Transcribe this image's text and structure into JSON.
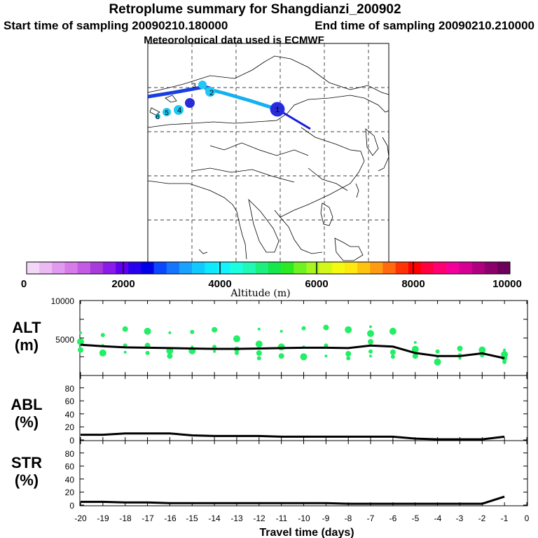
{
  "header": {
    "title": "Retroplume summary for Shangdianzi_200902",
    "start_label": "Start time of sampling 20090210.180000",
    "end_label": "End time of sampling 20090210.210000",
    "met_label": "Meteorological data used is ECMWF"
  },
  "colors": {
    "scale": [
      "#f3d7f7",
      "#ebbaf2",
      "#e09aef",
      "#d67be8",
      "#c45be4",
      "#a83bd9",
      "#8a1be9",
      "#6200ef",
      "#2700ee",
      "#0000e7",
      "#0b47ff",
      "#1675ff",
      "#19a2ff",
      "#11c9ff",
      "#0ee9ff",
      "#12f3ff",
      "#1bffe0",
      "#20f8b5",
      "#1def7d",
      "#16e74b",
      "#2bea23",
      "#6ff21f",
      "#a6f51f",
      "#d2f718",
      "#f3f90f",
      "#ffe80f",
      "#ffc30f",
      "#ff9b12",
      "#ff6a0e",
      "#ff3305",
      "#ff0000",
      "#ff0040",
      "#ff0072",
      "#f3009b",
      "#d70094",
      "#b1007f",
      "#8c006b",
      "#6c005a"
    ],
    "track_dark": "#1a3fe0",
    "track_light": "#16b0f0",
    "circle_dark": "#2a2ad8",
    "circle_light": "#1fc8f5",
    "dots": "#22ee66"
  },
  "map": {
    "label_points": [
      {
        "id": "1",
        "label": "1",
        "color": "#2a2ad8"
      },
      {
        "id": "2",
        "label": "2",
        "color": "#1fc8f5"
      },
      {
        "id": "3",
        "label": "3",
        "color": "#1fc8f5"
      },
      {
        "id": "4",
        "label": "4",
        "color": "#1fc8f5"
      },
      {
        "id": "5",
        "label": "5",
        "color": "#1fc8f5"
      },
      {
        "id": "6",
        "label": "6",
        "color": "#1fc8f5"
      },
      {
        "id": "7",
        "label": "7",
        "color": "#2a2ad8"
      }
    ]
  },
  "colorbar": {
    "ticks": [
      "0",
      "2000",
      "4000",
      "6000",
      "8000",
      "10000"
    ],
    "label": "Altitude (m)"
  },
  "chart_data": [
    {
      "type": "line",
      "panel": "alt",
      "ylabel_line1": "ALT",
      "ylabel_line2": "(m)",
      "ylim": [
        0,
        10000
      ],
      "yticks": [
        "5000",
        "10000"
      ],
      "x": [
        -20,
        -19,
        -18,
        -17,
        -16,
        -15,
        -14,
        -13,
        -12,
        -11,
        -10,
        -9,
        -8,
        -7,
        -6,
        -5,
        -4,
        -3,
        -2,
        -1
      ],
      "series": [
        {
          "name": "median altitude",
          "values": [
            4100,
            3900,
            3750,
            3700,
            3650,
            3600,
            3550,
            3550,
            3600,
            3650,
            3700,
            3700,
            3650,
            4000,
            3850,
            3000,
            2600,
            2600,
            2950,
            2300
          ]
        }
      ],
      "dots": [
        [
          -20,
          5700
        ],
        [
          -20,
          4500
        ],
        [
          -20,
          3400
        ],
        [
          -19,
          5400
        ],
        [
          -19,
          4000
        ],
        [
          -19,
          3000
        ],
        [
          -18,
          6200
        ],
        [
          -18,
          4000
        ],
        [
          -18,
          3100
        ],
        [
          -17,
          5900
        ],
        [
          -17,
          4000
        ],
        [
          -17,
          3000
        ],
        [
          -16,
          5700
        ],
        [
          -16,
          3300
        ],
        [
          -16,
          2600
        ],
        [
          -15,
          5800
        ],
        [
          -15,
          3800
        ],
        [
          -15,
          3300
        ],
        [
          -14,
          6100
        ],
        [
          -14,
          3800
        ],
        [
          -14,
          3200
        ],
        [
          -13,
          4900
        ],
        [
          -13,
          3500
        ],
        [
          -13,
          3000
        ],
        [
          -12,
          6200
        ],
        [
          -12,
          4200
        ],
        [
          -12,
          3000
        ],
        [
          -12,
          2300
        ],
        [
          -11,
          5900
        ],
        [
          -11,
          3800
        ],
        [
          -11,
          2600
        ],
        [
          -10,
          6300
        ],
        [
          -10,
          3800
        ],
        [
          -10,
          2500
        ],
        [
          -9,
          6400
        ],
        [
          -9,
          4000
        ],
        [
          -9,
          2600
        ],
        [
          -8,
          6100
        ],
        [
          -8,
          2900
        ],
        [
          -8,
          2300
        ],
        [
          -7,
          6500
        ],
        [
          -7,
          5600
        ],
        [
          -7,
          4500
        ],
        [
          -7,
          3200
        ],
        [
          -7,
          2600
        ],
        [
          -6,
          5900
        ],
        [
          -6,
          3100
        ],
        [
          -6,
          2500
        ],
        [
          -5,
          4400
        ],
        [
          -5,
          3500
        ],
        [
          -5,
          2600
        ],
        [
          -4,
          3200
        ],
        [
          -4,
          2500
        ],
        [
          -4,
          1800
        ],
        [
          -3,
          3600
        ],
        [
          -3,
          2700
        ],
        [
          -3,
          2300
        ],
        [
          -2,
          3400
        ],
        [
          -2,
          3000
        ],
        [
          -2,
          2700
        ],
        [
          -1,
          3400
        ],
        [
          -1,
          2800
        ],
        [
          -1,
          2300
        ],
        [
          -1,
          1800
        ]
      ]
    },
    {
      "type": "line",
      "panel": "abl",
      "ylabel_line1": "ABL",
      "ylabel_line2": "(%)",
      "ylim": [
        0,
        100
      ],
      "yticks": [
        "0",
        "20",
        "40",
        "60",
        "80"
      ],
      "x": [
        -20,
        -19,
        -18,
        -17,
        -16,
        -15,
        -14,
        -13,
        -12,
        -11,
        -10,
        -9,
        -8,
        -7,
        -6,
        -5,
        -4,
        -3,
        -2,
        -1
      ],
      "series": [
        {
          "name": "ABL fraction",
          "values": [
            8,
            8,
            10,
            10,
            10,
            7,
            6,
            6,
            6,
            5,
            5,
            5,
            5,
            5,
            5,
            2,
            1,
            1,
            1,
            5
          ]
        }
      ]
    },
    {
      "type": "line",
      "panel": "str",
      "ylabel_line1": "STR",
      "ylabel_line2": "(%)",
      "ylim": [
        0,
        100
      ],
      "yticks": [
        "0",
        "20",
        "40",
        "60",
        "80"
      ],
      "xlabel": "Travel time (days)",
      "xticks": [
        "-20",
        "-19",
        "-18",
        "-17",
        "-16",
        "-15",
        "-14",
        "-13",
        "-12",
        "-11",
        "-10",
        "-9",
        "-8",
        "-7",
        "-6",
        "-5",
        "-4",
        "-3",
        "-2",
        "-1",
        "0"
      ],
      "x": [
        -20,
        -19,
        -18,
        -17,
        -16,
        -15,
        -14,
        -13,
        -12,
        -11,
        -10,
        -9,
        -8,
        -7,
        -6,
        -5,
        -4,
        -3,
        -2,
        -1
      ],
      "series": [
        {
          "name": "stratosphere fraction",
          "values": [
            5,
            5,
            4,
            4,
            3,
            3,
            3,
            3,
            3,
            3,
            3,
            3,
            2,
            2,
            2,
            2,
            2,
            2,
            2,
            13
          ]
        }
      ]
    }
  ]
}
